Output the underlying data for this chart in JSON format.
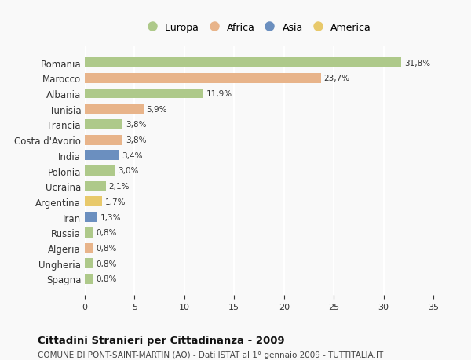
{
  "countries": [
    "Romania",
    "Marocco",
    "Albania",
    "Tunisia",
    "Francia",
    "Costa d'Avorio",
    "India",
    "Polonia",
    "Ucraina",
    "Argentina",
    "Iran",
    "Russia",
    "Algeria",
    "Ungheria",
    "Spagna"
  ],
  "values": [
    31.8,
    23.7,
    11.9,
    5.9,
    3.8,
    3.8,
    3.4,
    3.0,
    2.1,
    1.7,
    1.3,
    0.8,
    0.8,
    0.8,
    0.8
  ],
  "labels": [
    "31,8%",
    "23,7%",
    "11,9%",
    "5,9%",
    "3,8%",
    "3,8%",
    "3,4%",
    "3,0%",
    "2,1%",
    "1,7%",
    "1,3%",
    "0,8%",
    "0,8%",
    "0,8%",
    "0,8%"
  ],
  "continents": [
    "Europa",
    "Africa",
    "Europa",
    "Africa",
    "Europa",
    "Africa",
    "Asia",
    "Europa",
    "Europa",
    "America",
    "Asia",
    "Europa",
    "Africa",
    "Europa",
    "Europa"
  ],
  "continent_colors": {
    "Europa": "#aec98a",
    "Africa": "#e8b48a",
    "Asia": "#6b8fbf",
    "America": "#e8c96b"
  },
  "legend_order": [
    "Europa",
    "Africa",
    "Asia",
    "America"
  ],
  "title": "Cittadini Stranieri per Cittadinanza - 2009",
  "subtitle": "COMUNE DI PONT-SAINT-MARTIN (AO) - Dati ISTAT al 1° gennaio 2009 - TUTTITALIA.IT",
  "xlim": [
    0,
    35
  ],
  "xticks": [
    0,
    5,
    10,
    15,
    20,
    25,
    30,
    35
  ],
  "background_color": "#f9f9f9",
  "grid_color": "#ffffff",
  "bar_height": 0.65
}
